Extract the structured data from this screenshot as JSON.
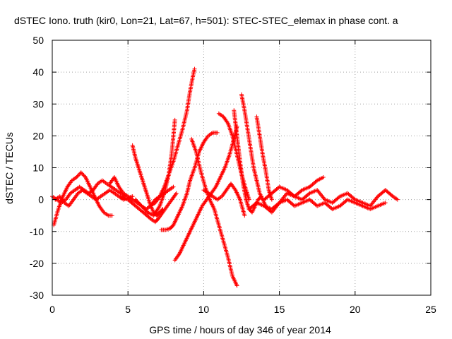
{
  "chart_data": {
    "type": "scatter",
    "title": "dSTEC Iono. truth (kir0, Lon=21, Lat=67, h=501): STEC-STEC_elemax in phase cont. a",
    "xlabel": "GPS time / hours of day 346 of year 2014",
    "ylabel": "dSTEC  / TECUs",
    "xlim": [
      0,
      25
    ],
    "ylim": [
      -30,
      50
    ],
    "xticks": [
      0,
      5,
      10,
      15,
      20,
      25
    ],
    "yticks": [
      -30,
      -20,
      -10,
      0,
      10,
      20,
      30,
      40,
      50
    ],
    "grid": true,
    "marker": "+",
    "color": "#ff0000",
    "series": [
      {
        "x": [
          0.1,
          0.4,
          0.7,
          1.0,
          1.3,
          1.6,
          1.9,
          2.2,
          2.5,
          2.8,
          3.1,
          3.4,
          3.7,
          3.95
        ],
        "y": [
          -8,
          -3,
          1,
          4,
          6,
          7,
          8.5,
          7,
          4,
          1,
          -2,
          -4,
          -5,
          -5
        ]
      },
      {
        "x": [
          0.0,
          0.3,
          0.6,
          0.9,
          1.2,
          1.5,
          1.8,
          2.1,
          2.4,
          2.7,
          3.0,
          3.3,
          3.6,
          3.9,
          4.2,
          4.5,
          4.8
        ],
        "y": [
          1,
          0,
          -1,
          0,
          2,
          3,
          4,
          3,
          2,
          3,
          5,
          6,
          5,
          4,
          3,
          2,
          1
        ]
      },
      {
        "x": [
          0.2,
          0.5,
          0.8,
          1.1,
          1.4,
          1.7,
          2.0,
          2.3,
          2.6,
          2.9,
          3.2,
          3.5,
          3.8,
          4.1,
          4.4,
          4.7,
          5.0,
          5.3
        ],
        "y": [
          0,
          1,
          -1,
          -2,
          0,
          2,
          3,
          2,
          1,
          0,
          1,
          2,
          3,
          2,
          1,
          0,
          0.5,
          1
        ]
      },
      {
        "x": [
          3.8,
          4.1,
          4.4,
          4.7,
          5.0,
          5.3,
          5.6,
          5.9,
          6.2,
          6.5,
          6.8,
          7.1,
          7.4,
          7.7,
          8.0
        ],
        "y": [
          5,
          7,
          4,
          2,
          1,
          0,
          -1,
          -2,
          -3,
          -2,
          0,
          1,
          2,
          3,
          4
        ]
      },
      {
        "x": [
          5.3,
          5.5,
          5.7,
          5.9,
          6.1,
          6.3,
          6.5,
          6.7,
          6.9,
          7.1,
          7.3
        ],
        "y": [
          17,
          13,
          10,
          7,
          4,
          1,
          -2,
          -4,
          -5,
          -4,
          -3
        ]
      },
      {
        "x": [
          4.5,
          5.0,
          5.5,
          6.0,
          6.5,
          6.8,
          7.0,
          7.3,
          7.6,
          7.9,
          8.2
        ],
        "y": [
          1,
          0,
          -2,
          -4,
          -6,
          -7,
          -6,
          -4,
          -2,
          0,
          2
        ]
      },
      {
        "x": [
          6.5,
          6.8,
          7.1,
          7.4,
          7.7,
          8.0,
          8.3,
          8.6,
          8.9,
          9.1,
          9.3,
          9.4
        ],
        "y": [
          -2,
          -1,
          1,
          4,
          8,
          12,
          17,
          22,
          28,
          34,
          39,
          41
        ]
      },
      {
        "x": [
          5.5,
          5.9,
          6.3,
          6.7,
          7.1,
          7.4,
          7.7,
          7.9,
          8.1
        ],
        "y": [
          0,
          -2,
          -4,
          -5,
          -2,
          2,
          8,
          15,
          25
        ]
      },
      {
        "x": [
          7.2,
          7.5,
          7.8,
          8.0,
          8.3,
          8.6,
          8.9,
          9.1,
          9.4,
          9.7,
          10.0,
          10.3,
          10.6,
          10.9
        ],
        "y": [
          -9.5,
          -9.5,
          -9,
          -8,
          -5,
          -2,
          2,
          6,
          10,
          15,
          18,
          20,
          21,
          21
        ]
      },
      {
        "x": [
          8.1,
          8.4,
          8.7,
          9.0,
          9.3,
          9.6,
          9.9,
          10.2,
          10.5,
          10.8,
          11.1,
          11.4,
          11.7,
          12.0,
          12.2
        ],
        "y": [
          -19,
          -17,
          -14,
          -11,
          -8,
          -5,
          -2,
          0,
          2,
          4,
          7,
          10,
          14,
          19,
          23
        ]
      },
      {
        "x": [
          9.2,
          9.5,
          9.8,
          10.1,
          10.4,
          10.7,
          11.0,
          11.3,
          11.6,
          11.9,
          12.2
        ],
        "y": [
          19,
          15,
          9,
          4,
          0,
          -3,
          -8,
          -13,
          -18,
          -24,
          -27
        ]
      },
      {
        "x": [
          11.0,
          11.3,
          11.6,
          11.9,
          12.2,
          12.5,
          12.8,
          13.0
        ],
        "y": [
          27,
          26,
          24,
          20,
          14,
          8,
          3,
          0
        ]
      },
      {
        "x": [
          10.0,
          10.3,
          10.6,
          10.9,
          11.2,
          11.5,
          11.8,
          12.1,
          12.4,
          12.7
        ],
        "y": [
          3,
          2,
          1,
          0,
          1,
          3,
          5,
          3,
          0,
          -5
        ]
      },
      {
        "x": [
          12.0,
          12.2,
          12.4,
          12.6,
          12.8,
          13.0,
          13.2,
          13.4,
          13.6,
          13.8
        ],
        "y": [
          28,
          20,
          12,
          5,
          0,
          -3,
          -4,
          -2,
          0,
          1
        ]
      },
      {
        "x": [
          12.5,
          12.7,
          12.9,
          13.1,
          13.3,
          13.5,
          13.7,
          13.9,
          14.1
        ],
        "y": [
          33,
          28,
          22,
          16,
          10,
          6,
          2,
          0,
          -2
        ]
      },
      {
        "x": [
          13.5,
          13.7,
          13.9,
          14.1,
          14.3,
          14.5
        ],
        "y": [
          26,
          20,
          14,
          9,
          3,
          0
        ]
      },
      {
        "x": [
          13.0,
          13.5,
          14.0,
          14.5,
          15.0,
          15.5,
          16.0,
          16.5,
          17.0,
          17.5,
          17.9
        ],
        "y": [
          -3,
          -1,
          -2,
          -4,
          -1,
          2,
          1,
          3,
          4,
          6,
          7
        ]
      },
      {
        "x": [
          14.0,
          14.5,
          15.0,
          15.5,
          16.0,
          16.5,
          17.0,
          17.5,
          18.0,
          18.5,
          19.0,
          19.5,
          20.0,
          20.5,
          21.0,
          21.5,
          22.0,
          22.5,
          22.8
        ],
        "y": [
          0,
          2,
          4,
          3,
          1,
          0,
          2,
          3,
          0,
          -1,
          1,
          2,
          0,
          -1,
          -2,
          1,
          3,
          1,
          0
        ]
      },
      {
        "x": [
          14.0,
          14.5,
          15.0,
          15.5,
          16.0,
          16.5,
          17.0,
          17.5,
          18.0,
          18.5,
          19.0,
          19.5,
          20.0,
          20.5,
          21.0,
          21.5,
          22.0
        ],
        "y": [
          -2,
          -3,
          -1,
          0,
          -2,
          -1,
          0,
          -2,
          -1,
          -3,
          -2,
          0,
          -1,
          -2,
          -3,
          -2,
          -1
        ]
      }
    ]
  }
}
